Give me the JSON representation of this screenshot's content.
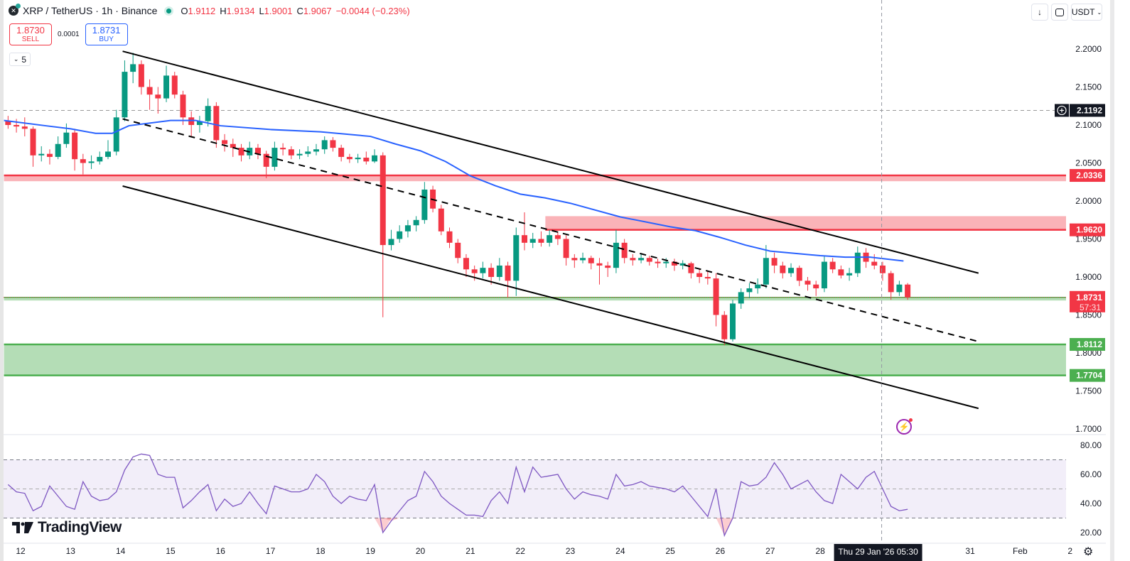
{
  "header": {
    "symbol_title": "XRP / TetherUS · 1h · Binance",
    "ohlc": {
      "o_label": "O",
      "o": "1.9112",
      "h_label": "H",
      "h": "1.9134",
      "l_label": "L",
      "l": "1.9001",
      "c_label": "C",
      "c": "1.9067",
      "change": "−0.0044 (−0.23%)"
    },
    "market_status": "open"
  },
  "trade": {
    "sell_price": "1.8730",
    "sell_label": "SELL",
    "spread": "0.0001",
    "buy_price": "1.8731",
    "buy_label": "BUY"
  },
  "indicators_toggle": {
    "count": "5"
  },
  "toolbar": {
    "currency": "USDT",
    "icons": [
      "arrow-down-icon",
      "fullscreen-icon",
      "chevron-down-icon"
    ]
  },
  "branding": {
    "logo_text": "TradingView"
  },
  "colors": {
    "up": "#089981",
    "down": "#f23645",
    "ma": "#2962ff",
    "rsi": "#7e57c2",
    "resistance": "#f23645",
    "support": "#4caf50",
    "channel": "#000000"
  },
  "chart_data": {
    "type": "candlestick",
    "symbol": "XRP / TetherUS",
    "interval_drawn": "4h",
    "time_start": "2026-01-11T16:00",
    "time_step_hours": 4,
    "candles": [
      [
        2.105,
        2.112,
        2.095,
        2.1
      ],
      [
        2.1,
        2.108,
        2.09,
        2.098
      ],
      [
        2.098,
        2.11,
        2.085,
        2.095
      ],
      [
        2.095,
        2.098,
        2.045,
        2.06
      ],
      [
        2.06,
        2.072,
        2.052,
        2.062
      ],
      [
        2.062,
        2.068,
        2.048,
        2.058
      ],
      [
        2.058,
        2.085,
        2.055,
        2.075
      ],
      [
        2.075,
        2.102,
        2.07,
        2.09
      ],
      [
        2.09,
        2.095,
        2.04,
        2.055
      ],
      [
        2.055,
        2.062,
        2.035,
        2.05
      ],
      [
        2.05,
        2.06,
        2.042,
        2.052
      ],
      [
        2.052,
        2.065,
        2.048,
        2.058
      ],
      [
        2.058,
        2.08,
        2.055,
        2.065
      ],
      [
        2.065,
        2.12,
        2.06,
        2.11
      ],
      [
        2.11,
        2.185,
        2.105,
        2.17
      ],
      [
        2.17,
        2.195,
        2.155,
        2.18
      ],
      [
        2.18,
        2.185,
        2.14,
        2.15
      ],
      [
        2.15,
        2.16,
        2.12,
        2.14
      ],
      [
        2.14,
        2.15,
        2.115,
        2.135
      ],
      [
        2.135,
        2.178,
        2.13,
        2.165
      ],
      [
        2.165,
        2.17,
        2.135,
        2.14
      ],
      [
        2.14,
        2.145,
        2.1,
        2.11
      ],
      [
        2.11,
        2.118,
        2.085,
        2.1
      ],
      [
        2.1,
        2.112,
        2.09,
        2.105
      ],
      [
        2.105,
        2.135,
        2.098,
        2.125
      ],
      [
        2.125,
        2.13,
        2.07,
        2.08
      ],
      [
        2.08,
        2.088,
        2.065,
        2.075
      ],
      [
        2.075,
        2.082,
        2.058,
        2.07
      ],
      [
        2.07,
        2.075,
        2.052,
        2.06
      ],
      [
        2.06,
        2.078,
        2.055,
        2.07
      ],
      [
        2.07,
        2.075,
        2.055,
        2.062
      ],
      [
        2.062,
        2.066,
        2.03,
        2.045
      ],
      [
        2.045,
        2.078,
        2.04,
        2.07
      ],
      [
        2.07,
        2.076,
        2.06,
        2.068
      ],
      [
        2.068,
        2.072,
        2.055,
        2.06
      ],
      [
        2.06,
        2.068,
        2.055,
        2.062
      ],
      [
        2.062,
        2.072,
        2.058,
        2.065
      ],
      [
        2.065,
        2.075,
        2.06,
        2.068
      ],
      [
        2.068,
        2.085,
        2.062,
        2.08
      ],
      [
        2.08,
        2.084,
        2.065,
        2.07
      ],
      [
        2.07,
        2.074,
        2.052,
        2.058
      ],
      [
        2.058,
        2.062,
        2.05,
        2.055
      ],
      [
        2.055,
        2.062,
        2.05,
        2.057
      ],
      [
        2.057,
        2.065,
        2.048,
        2.052
      ],
      [
        2.052,
        2.068,
        2.05,
        2.06
      ],
      [
        2.06,
        2.064,
        1.847,
        1.942
      ],
      [
        1.942,
        1.962,
        1.935,
        1.95
      ],
      [
        1.95,
        1.968,
        1.945,
        1.96
      ],
      [
        1.96,
        1.975,
        1.952,
        1.968
      ],
      [
        1.968,
        1.98,
        1.96,
        1.975
      ],
      [
        1.975,
        2.025,
        1.97,
        2.015
      ],
      [
        2.015,
        2.02,
        1.985,
        1.99
      ],
      [
        1.99,
        1.995,
        1.955,
        1.96
      ],
      [
        1.96,
        1.965,
        1.938,
        1.945
      ],
      [
        1.945,
        1.95,
        1.918,
        1.925
      ],
      [
        1.925,
        1.93,
        1.9,
        1.91
      ],
      [
        1.91,
        1.915,
        1.895,
        1.905
      ],
      [
        1.905,
        1.92,
        1.898,
        1.912
      ],
      [
        1.912,
        1.918,
        1.89,
        1.9
      ],
      [
        1.9,
        1.925,
        1.895,
        1.915
      ],
      [
        1.915,
        1.92,
        1.873,
        1.895
      ],
      [
        1.895,
        1.965,
        1.875,
        1.955
      ],
      [
        1.955,
        1.985,
        1.935,
        1.945
      ],
      [
        1.945,
        1.958,
        1.938,
        1.95
      ],
      [
        1.95,
        1.96,
        1.94,
        1.945
      ],
      [
        1.945,
        1.962,
        1.94,
        1.955
      ],
      [
        1.955,
        1.96,
        1.942,
        1.95
      ],
      [
        1.95,
        1.955,
        1.915,
        1.925
      ],
      [
        1.925,
        1.93,
        1.912,
        1.922
      ],
      [
        1.922,
        1.932,
        1.918,
        1.925
      ],
      [
        1.925,
        1.928,
        1.91,
        1.918
      ],
      [
        1.918,
        1.925,
        1.89,
        1.915
      ],
      [
        1.915,
        1.92,
        1.9,
        1.912
      ],
      [
        1.912,
        1.962,
        1.905,
        1.945
      ],
      [
        1.945,
        1.95,
        1.918,
        1.925
      ],
      [
        1.925,
        1.93,
        1.915,
        1.922
      ],
      [
        1.922,
        1.93,
        1.918,
        1.925
      ],
      [
        1.925,
        1.928,
        1.915,
        1.92
      ],
      [
        1.92,
        1.924,
        1.912,
        1.918
      ],
      [
        1.918,
        1.925,
        1.912,
        1.92
      ],
      [
        1.92,
        1.924,
        1.908,
        1.915
      ],
      [
        1.915,
        1.922,
        1.91,
        1.918
      ],
      [
        1.918,
        1.92,
        1.898,
        1.905
      ],
      [
        1.905,
        1.91,
        1.892,
        1.9
      ],
      [
        1.9,
        1.908,
        1.89,
        1.898
      ],
      [
        1.898,
        1.905,
        1.835,
        1.85
      ],
      [
        1.85,
        1.855,
        1.81,
        1.818
      ],
      [
        1.818,
        1.87,
        1.815,
        1.865
      ],
      [
        1.865,
        1.885,
        1.858,
        1.88
      ],
      [
        1.88,
        1.892,
        1.872,
        1.885
      ],
      [
        1.885,
        1.898,
        1.878,
        1.89
      ],
      [
        1.89,
        1.942,
        1.885,
        1.925
      ],
      [
        1.925,
        1.932,
        1.905,
        1.915
      ],
      [
        1.915,
        1.92,
        1.898,
        1.905
      ],
      [
        1.905,
        1.918,
        1.9,
        1.912
      ],
      [
        1.912,
        1.915,
        1.888,
        1.895
      ],
      [
        1.895,
        1.9,
        1.882,
        1.89
      ],
      [
        1.89,
        1.895,
        1.875,
        1.885
      ],
      [
        1.885,
        1.928,
        1.88,
        1.92
      ],
      [
        1.92,
        1.925,
        1.905,
        1.91
      ],
      [
        1.91,
        1.915,
        1.898,
        1.902
      ],
      [
        1.902,
        1.912,
        1.895,
        1.905
      ],
      [
        1.905,
        1.94,
        1.9,
        1.932
      ],
      [
        1.932,
        1.938,
        1.912,
        1.92
      ],
      [
        1.92,
        1.93,
        1.91,
        1.915
      ],
      [
        1.915,
        1.92,
        1.895,
        1.905
      ],
      [
        1.905,
        1.908,
        1.87,
        1.88
      ],
      [
        1.88,
        1.895,
        1.875,
        1.89
      ],
      [
        1.89,
        1.892,
        1.87,
        1.8731
      ]
    ],
    "moving_average": [
      [
        "2026-01-11T16:00",
        2.106
      ],
      [
        "2026-01-12T12:00",
        2.099
      ],
      [
        "2026-01-13T00:00",
        2.095
      ],
      [
        "2026-01-13T12:00",
        2.089
      ],
      [
        "2026-01-13T20:00",
        2.089
      ],
      [
        "2026-01-14T04:00",
        2.099
      ],
      [
        "2026-01-15T00:00",
        2.106
      ],
      [
        "2026-01-15T12:00",
        2.106
      ],
      [
        "2026-01-16T00:00",
        2.099
      ],
      [
        "2026-01-17T00:00",
        2.094
      ],
      [
        "2026-01-18T00:00",
        2.091
      ],
      [
        "2026-01-19T00:00",
        2.085
      ],
      [
        "2026-01-19T12:00",
        2.075
      ],
      [
        "2026-01-20T00:00",
        2.066
      ],
      [
        "2026-01-20T12:00",
        2.052
      ],
      [
        "2026-01-21T00:00",
        2.033
      ],
      [
        "2026-01-21T12:00",
        2.02
      ],
      [
        "2026-01-22T00:00",
        2.009
      ],
      [
        "2026-01-22T12:00",
        2.004
      ],
      [
        "2026-01-23T00:00",
        1.997
      ],
      [
        "2026-01-24T00:00",
        1.979
      ],
      [
        "2026-01-25T00:00",
        1.966
      ],
      [
        "2026-01-25T12:00",
        1.961
      ],
      [
        "2026-01-26T00:00",
        1.952
      ],
      [
        "2026-01-26T12:00",
        1.942
      ],
      [
        "2026-01-27T00:00",
        1.934
      ],
      [
        "2026-01-28T00:00",
        1.928
      ],
      [
        "2026-01-28T12:00",
        1.926
      ],
      [
        "2026-01-29T00:00",
        1.926
      ],
      [
        "2026-01-29T16:00",
        1.921
      ]
    ],
    "trend_lines": [
      {
        "style": "solid",
        "from": [
          "2026-01-14T01:00",
          2.197
        ],
        "to": [
          "2026-01-31T04:00",
          1.905
        ]
      },
      {
        "style": "dashed",
        "from": [
          "2026-01-14T01:00",
          2.108
        ],
        "to": [
          "2026-01-31T04:00",
          1.815
        ]
      },
      {
        "style": "solid",
        "from": [
          "2026-01-14T01:00",
          2.0196
        ],
        "to": [
          "2026-01-31T04:00",
          1.727
        ]
      }
    ],
    "zones": [
      {
        "kind": "resistance",
        "line": 2.0336,
        "band": [
          2.026,
          2.0336
        ],
        "start": "2026-01-11T16:00",
        "label": "2.0336"
      },
      {
        "kind": "resistance",
        "line": 1.962,
        "band": [
          1.962,
          1.98
        ],
        "start": "2026-01-22T12:00",
        "label": "1.9620"
      },
      {
        "kind": "support",
        "line": 1.8731,
        "band": [
          1.869,
          1.8731
        ],
        "start": "2026-01-11T16:00",
        "label": ""
      },
      {
        "kind": "support",
        "line": 1.8112,
        "band": [
          1.7704,
          1.8112
        ],
        "start": "2026-01-11T16:00",
        "label": "1.8112"
      },
      {
        "kind": "support",
        "line": 1.7704,
        "band": [
          1.7704,
          1.7704
        ],
        "start": "2026-01-11T16:00",
        "label": "1.7704"
      }
    ],
    "marked_level": {
      "price": 2.1192,
      "label": "2.1192"
    },
    "last_price": {
      "price": 1.8731,
      "label": "1.8731",
      "countdown": "57:31"
    },
    "crosshair": {
      "time": "2026-01-29T05:30",
      "label": "Thu 29 Jan '26   05:30"
    },
    "price_axis": {
      "range": [
        1.7,
        2.2
      ],
      "ticks": [
        "2.2000",
        "2.1500",
        "2.1000",
        "2.0500",
        "2.0000",
        "1.9500",
        "1.9000",
        "1.8500",
        "1.8000",
        "1.7500",
        "1.7000"
      ]
    },
    "time_axis": {
      "ticks": [
        [
          "2026-01-12T00:00",
          "12"
        ],
        [
          "2026-01-13T00:00",
          "13"
        ],
        [
          "2026-01-14T00:00",
          "14"
        ],
        [
          "2026-01-15T00:00",
          "15"
        ],
        [
          "2026-01-16T00:00",
          "16"
        ],
        [
          "2026-01-17T00:00",
          "17"
        ],
        [
          "2026-01-18T00:00",
          "18"
        ],
        [
          "2026-01-19T00:00",
          "19"
        ],
        [
          "2026-01-20T00:00",
          "20"
        ],
        [
          "2026-01-21T00:00",
          "21"
        ],
        [
          "2026-01-22T00:00",
          "22"
        ],
        [
          "2026-01-23T00:00",
          "23"
        ],
        [
          "2026-01-24T00:00",
          "24"
        ],
        [
          "2026-01-25T00:00",
          "25"
        ],
        [
          "2026-01-26T00:00",
          "26"
        ],
        [
          "2026-01-27T00:00",
          "27"
        ],
        [
          "2026-01-28T00:00",
          "28"
        ],
        [
          "2026-01-31T00:00",
          "31"
        ],
        [
          "2026-02-01T00:00",
          "Feb"
        ],
        [
          "2026-02-02T00:00",
          "2"
        ]
      ]
    },
    "rsi": {
      "range": [
        10,
        85
      ],
      "upper": 70,
      "middle": 50,
      "lower": 30,
      "ticks": [
        "80.00",
        "60.00",
        "40.00",
        "20.00"
      ],
      "values": [
        53,
        48,
        47,
        35,
        38,
        52,
        45,
        38,
        36,
        55,
        45,
        42,
        43,
        48,
        63,
        72,
        74,
        73,
        60,
        58,
        58,
        37,
        42,
        48,
        53,
        35,
        43,
        38,
        40,
        48,
        40,
        33,
        52,
        50,
        48,
        48,
        50,
        60,
        55,
        45,
        40,
        45,
        43,
        42,
        53,
        20,
        28,
        35,
        42,
        45,
        62,
        55,
        45,
        40,
        36,
        32,
        32,
        31,
        42,
        48,
        40,
        65,
        48,
        65,
        58,
        59,
        60,
        50,
        43,
        48,
        46,
        45,
        43,
        60,
        52,
        53,
        55,
        52,
        51,
        50,
        48,
        52,
        45,
        38,
        31,
        50,
        18,
        30,
        55,
        52,
        53,
        58,
        68,
        60,
        50,
        53,
        56,
        48,
        42,
        40,
        60,
        55,
        50,
        58,
        62,
        50,
        38,
        35,
        36
      ]
    }
  }
}
